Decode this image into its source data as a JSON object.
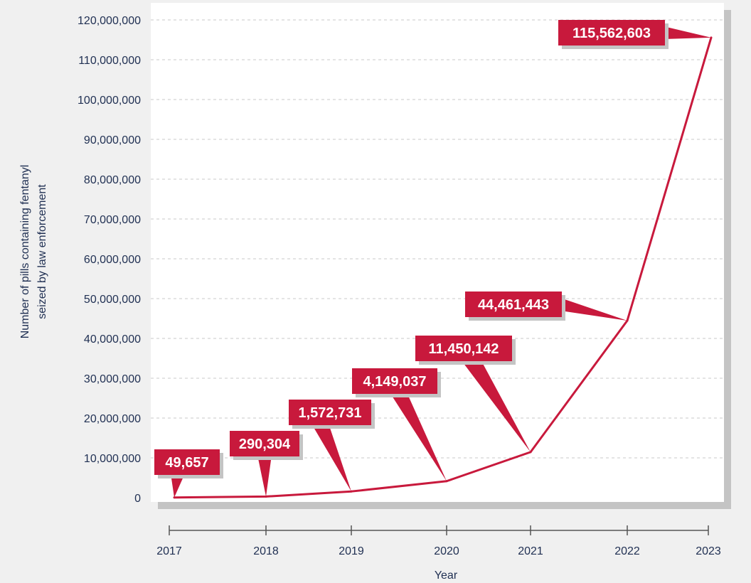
{
  "chart_data": {
    "type": "line",
    "x": [
      "2017",
      "2018",
      "2019",
      "2020",
      "2021",
      "2022",
      "2023"
    ],
    "series": [
      {
        "values": [
          49657,
          290304,
          1572731,
          4149037,
          11450142,
          44461443,
          115562603
        ]
      }
    ],
    "data_labels": [
      "49,657",
      "290,304",
      "1,572,731",
      "4,149,037",
      "11,450,142",
      "44,461,443",
      "115,562,603"
    ],
    "y_ticks": [
      0,
      10000000,
      20000000,
      30000000,
      40000000,
      50000000,
      60000000,
      70000000,
      80000000,
      90000000,
      100000000,
      110000000,
      120000000
    ],
    "y_tick_labels": [
      "0",
      "10,000,000",
      "20,000,000",
      "30,000,000",
      "40,000,000",
      "50,000,000",
      "60,000,000",
      "70,000,000",
      "80,000,000",
      "90,000,000",
      "100,000,000",
      "110,000,000",
      "120,000,000"
    ],
    "xlabel": "Year",
    "ylabel_lines": [
      "Number of pills containing fentanyl",
      "seized by law enforcement"
    ],
    "ylim": [
      0,
      120000000
    ],
    "grid": true,
    "colors": {
      "line": "#c8193c",
      "label_bg": "#c8193c",
      "label_text": "#ffffff",
      "axis_text": "#1f2f52",
      "grid": "#c8c8c8",
      "plot_bg": "#ffffff",
      "page_bg": "#f0f0f0",
      "shadow": "#c4c4c4"
    }
  }
}
